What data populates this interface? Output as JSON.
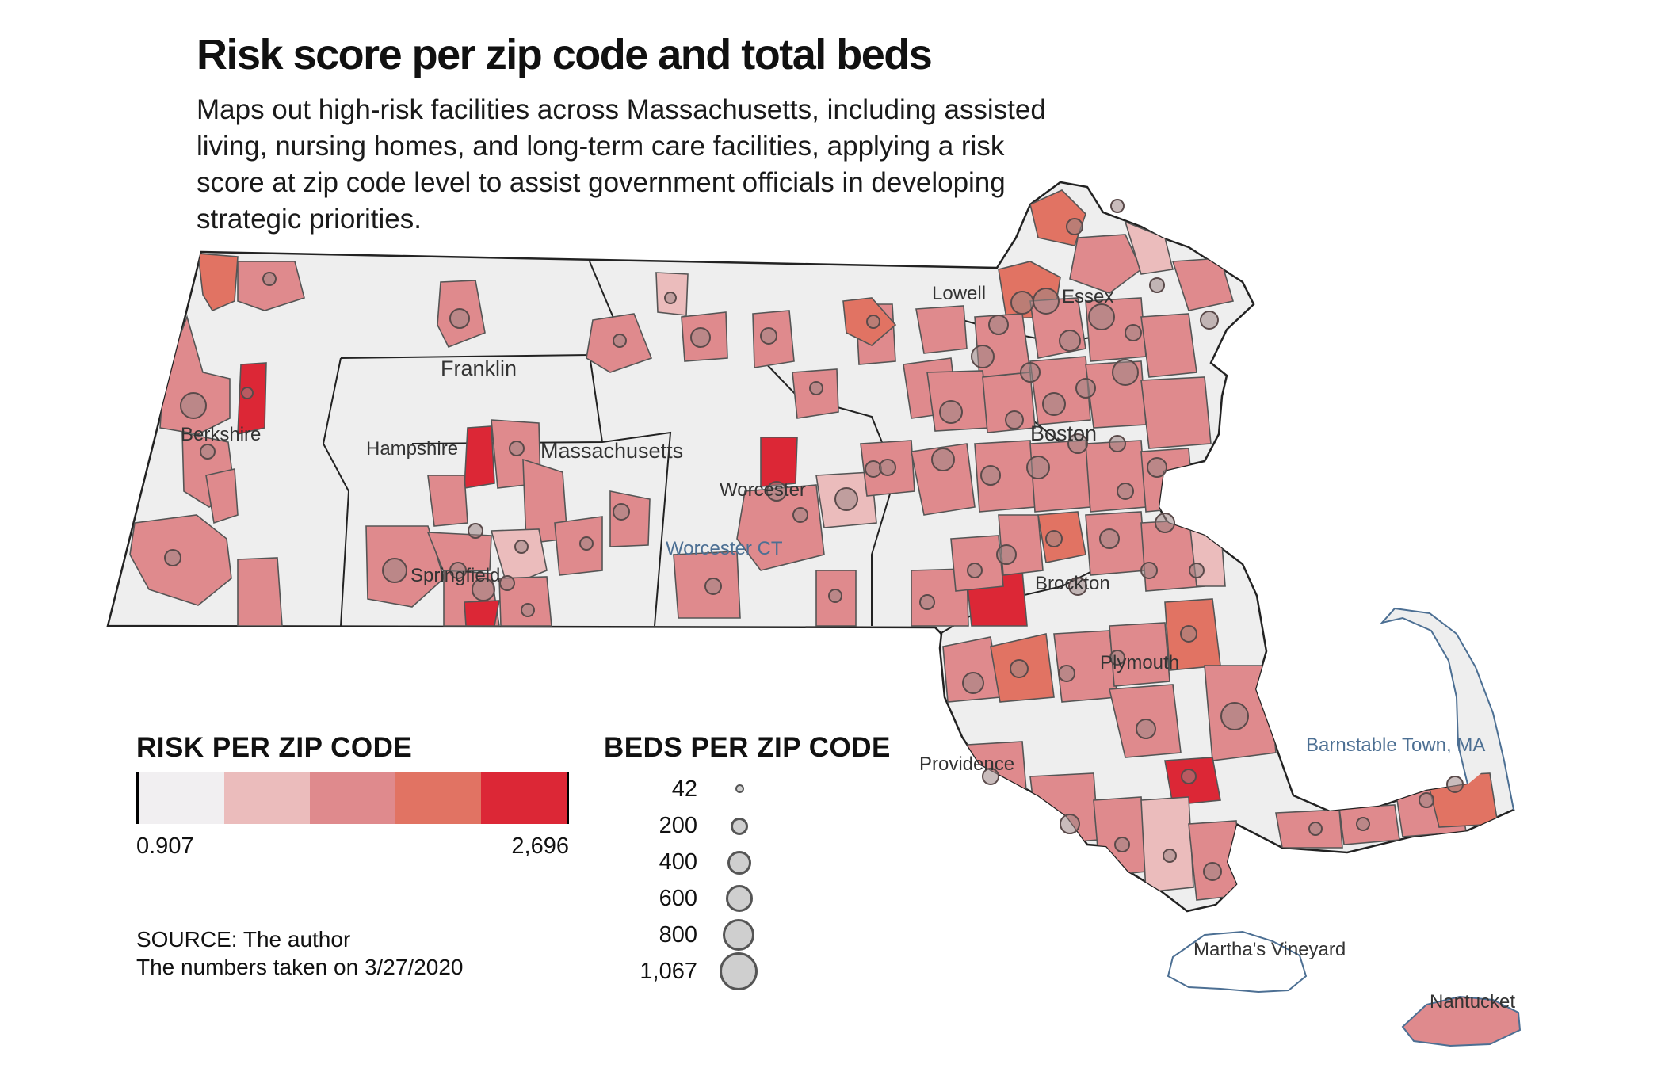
{
  "title": "Risk score per zip code and total beds",
  "subtitle": "Maps out high-risk facilities across Massachusetts, including assisted living, nursing homes, and long-term care facilities, applying a risk score at zip code level to assist government officials in developing strategic priorities.",
  "map": {
    "place_labels": [
      "Franklin",
      "Hampshire",
      "Massachusetts",
      "Berkshire",
      "Worcester",
      "Plymouth",
      "Barnstable Town, MA",
      "Martha's Vineyard",
      "Nantucket",
      "Lowell",
      "Essex",
      "Boston",
      "Springfield",
      "Worcester CT",
      "Providence",
      "Brockton"
    ]
  },
  "risk_legend": {
    "heading": "RISK PER ZIP CODE",
    "min_label": "0.907",
    "max_label": "2,696",
    "colors": [
      "#f1eff1",
      "#ebbcbc",
      "#df8a8d",
      "#e17363",
      "#dc2736"
    ]
  },
  "beds_legend": {
    "heading": "BEDS PER ZIP CODE",
    "values": [
      "42",
      "200",
      "400",
      "600",
      "800",
      "1,067"
    ]
  },
  "source": {
    "line1": "SOURCE: The author",
    "line2": "The numbers taken on 3/27/2020"
  }
}
